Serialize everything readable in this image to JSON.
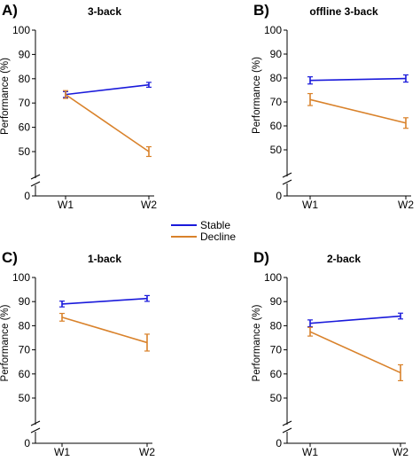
{
  "colors": {
    "stable": "#1a1adb",
    "decline": "#d9822b",
    "axis": "#000000"
  },
  "legend": {
    "items": [
      {
        "key": "stable",
        "label": "Stable"
      },
      {
        "key": "decline",
        "label": "Decline"
      }
    ]
  },
  "chart_data": [
    {
      "type": "line",
      "panel": "A)",
      "title": "3-back",
      "categories": [
        "W1",
        "W2"
      ],
      "ylabel": "Performance (%)",
      "ylim": [
        50,
        100
      ],
      "yticks": [
        50,
        60,
        70,
        80,
        90,
        100
      ],
      "axis_break": true,
      "axis_floor_label": "0",
      "series": [
        {
          "name": "Stable",
          "color_key": "stable",
          "values": [
            73.5,
            77.5
          ],
          "errors": [
            1.2,
            1.0
          ]
        },
        {
          "name": "Decline",
          "color_key": "decline",
          "values": [
            73.5,
            50
          ],
          "errors": [
            1.6,
            2.0
          ]
        }
      ]
    },
    {
      "type": "line",
      "panel": "B)",
      "title": "offline 3-back",
      "categories": [
        "W1",
        "W2"
      ],
      "ylabel": "Performance (%)",
      "ylim": [
        50,
        100
      ],
      "yticks": [
        50,
        60,
        70,
        80,
        90,
        100
      ],
      "axis_break": true,
      "axis_floor_label": "0",
      "series": [
        {
          "name": "Stable",
          "color_key": "stable",
          "values": [
            79,
            79.8
          ],
          "errors": [
            1.5,
            1.5
          ]
        },
        {
          "name": "Decline",
          "color_key": "decline",
          "values": [
            71,
            61.2
          ],
          "errors": [
            2.5,
            2.2
          ]
        }
      ]
    },
    {
      "type": "line",
      "panel": "C)",
      "title": "1-back",
      "categories": [
        "W1",
        "W2"
      ],
      "ylabel": "Performance (%)",
      "ylim": [
        50,
        100
      ],
      "yticks": [
        50,
        60,
        70,
        80,
        90,
        100
      ],
      "axis_break": true,
      "axis_floor_label": "0",
      "series": [
        {
          "name": "Stable",
          "color_key": "stable",
          "values": [
            89,
            91.3
          ],
          "errors": [
            1.2,
            1.2
          ]
        },
        {
          "name": "Decline",
          "color_key": "decline",
          "values": [
            83.5,
            73
          ],
          "errors": [
            1.6,
            3.5
          ]
        }
      ]
    },
    {
      "type": "line",
      "panel": "D)",
      "title": "2-back",
      "categories": [
        "W1",
        "W2"
      ],
      "ylabel": "Performance (%)",
      "ylim": [
        50,
        100
      ],
      "yticks": [
        50,
        60,
        70,
        80,
        90,
        100
      ],
      "axis_break": true,
      "axis_floor_label": "0",
      "series": [
        {
          "name": "Stable",
          "color_key": "stable",
          "values": [
            81,
            84
          ],
          "errors": [
            1.4,
            1.2
          ]
        },
        {
          "name": "Decline",
          "color_key": "decline",
          "values": [
            77.5,
            60.5
          ],
          "errors": [
            1.8,
            3.3
          ]
        }
      ]
    }
  ]
}
